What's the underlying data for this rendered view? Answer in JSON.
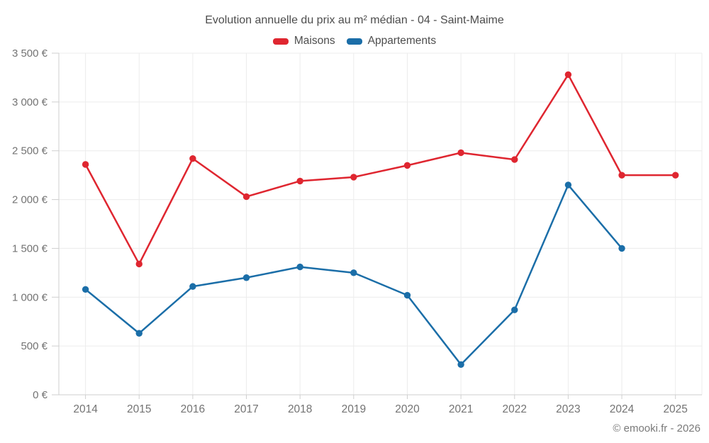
{
  "chart_data": {
    "type": "line",
    "title": "Evolution annuelle du prix au m² médian - 04 - Saint-Maime",
    "footer": "© emooki.fr - 2026",
    "categories": [
      "2014",
      "2015",
      "2016",
      "2017",
      "2018",
      "2019",
      "2020",
      "2021",
      "2022",
      "2023",
      "2024",
      "2025"
    ],
    "series": [
      {
        "name": "Maisons",
        "color": "#df2630",
        "values": [
          2360,
          1340,
          2420,
          2030,
          2190,
          2230,
          2350,
          2480,
          2410,
          3280,
          2250,
          2250
        ]
      },
      {
        "name": "Appartements",
        "color": "#1b6ea8",
        "values": [
          1080,
          630,
          1110,
          1200,
          1310,
          1250,
          1020,
          310,
          870,
          2150,
          1500,
          null
        ]
      }
    ],
    "ylim": [
      0,
      3500
    ],
    "ytick_step": 500,
    "ytick_labels": [
      "0 €",
      "500 €",
      "1 000 €",
      "1 500 €",
      "2 000 €",
      "2 500 €",
      "3 000 €",
      "3 500 €"
    ],
    "grid": true,
    "legend_position": "top",
    "colors": {
      "grid": "#ececec",
      "axis": "#cfcfcf",
      "tick_label": "#737373",
      "title_text": "#4d4d4d",
      "background": "#ffffff"
    }
  }
}
